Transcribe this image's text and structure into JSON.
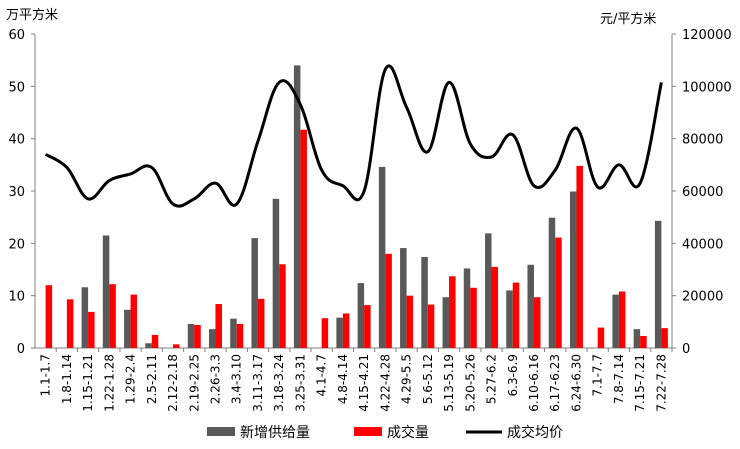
{
  "chart_data": {
    "type": "bar",
    "left_unit": "万平方米",
    "right_unit": "元/平方米",
    "ylim": [
      0,
      60
    ],
    "y2lim": [
      0,
      120000
    ],
    "yticks": [
      "0",
      "10",
      "20",
      "30",
      "40",
      "50",
      "60"
    ],
    "y2ticks": [
      "0",
      "20000",
      "40000",
      "60000",
      "80000",
      "100000",
      "120000"
    ],
    "categories": [
      "1.1-1.7",
      "1.8-1.14",
      "1.15-1.21",
      "1.22-1.28",
      "1.29-2.4",
      "2.5-2.11",
      "2.12-2.18",
      "2.19-2.25",
      "2.26-3.3",
      "3.4-3.10",
      "3.11-3.17",
      "3.18-3.24",
      "3.25-3.31",
      "4.1-4.7",
      "4.8-4.14",
      "4.15-4.21",
      "4.22-4.28",
      "4.29-5.5",
      "5.6-5.12",
      "5.13-5.19",
      "5.20-5.26",
      "5.27-6.2",
      "6.3-6.9",
      "6.10-6.16",
      "6.17-6.23",
      "6.24-6.30",
      "7.1-7.7",
      "7.8-7.14",
      "7.15-7.21",
      "7.22-7.28"
    ],
    "series": [
      {
        "name": "新增供给量",
        "kind": "bar",
        "axis": "left",
        "color": "#595959",
        "values": [
          0,
          0,
          11.6,
          21.5,
          7.3,
          0.9,
          0,
          4.6,
          3.6,
          5.6,
          21,
          28.5,
          54,
          0,
          5.8,
          12.4,
          34.6,
          19.1,
          17.4,
          9.7,
          15.2,
          21.9,
          11,
          15.9,
          24.9,
          29.9,
          0,
          10.2,
          3.6,
          24.3
        ]
      },
      {
        "name": "成交量",
        "kind": "bar",
        "axis": "left",
        "color": "#ff0000",
        "values": [
          12,
          9.3,
          6.9,
          12.2,
          10.2,
          2.5,
          0.7,
          4.4,
          8.4,
          4.6,
          9.4,
          16,
          41.7,
          5.7,
          6.6,
          8.2,
          18,
          10,
          8.3,
          13.7,
          11.5,
          15.5,
          12.5,
          9.7,
          21.1,
          34.8,
          3.9,
          10.8,
          2.3,
          3.8
        ]
      },
      {
        "name": "成交均价",
        "kind": "line",
        "axis": "right",
        "color": "#000000",
        "values": [
          74000,
          69000,
          57000,
          64000,
          66500,
          69000,
          55000,
          57000,
          63000,
          55000,
          79000,
          101500,
          93000,
          68000,
          62000,
          60000,
          106500,
          92000,
          75000,
          101500,
          78000,
          73000,
          81500,
          62000,
          68000,
          84000,
          61500,
          70000,
          63000,
          101500
        ]
      }
    ]
  }
}
